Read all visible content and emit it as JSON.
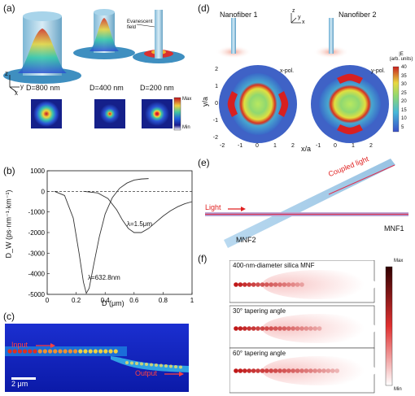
{
  "panel_labels": {
    "a": "(a)",
    "b": "(b)",
    "c": "(c)",
    "d": "(d)",
    "e": "(e)",
    "f": "(f)"
  },
  "panel_a": {
    "diameters": [
      "D=800 nm",
      "D=400 nm",
      "D=200 nm"
    ],
    "evanescent_label": "Evanescent field",
    "colorbar_max": "Max",
    "colorbar_min": "Min",
    "axes": {
      "x": "x",
      "y": "y",
      "z": "z"
    }
  },
  "panel_c": {
    "input_label": "Input",
    "output_label": "Output",
    "scalebar_label": "2 μm"
  },
  "panel_d": {
    "fiber1": "Nanofiber 1",
    "fiber2": "Nanofiber 2",
    "pol_left": "x-pol.",
    "pol_right": "y-pol.",
    "colorbar_title_line1": "|E",
    "colorbar_title_line2": "(arb. units)",
    "colorbar_ticks": [
      "40",
      "35",
      "30",
      "25",
      "20",
      "15",
      "10",
      "5"
    ],
    "ylabel": "y/a",
    "xlabel": "x/a",
    "left_xticks": [
      "-2",
      "-1",
      "0",
      "1",
      "2"
    ],
    "right_xticks": [
      "-1",
      "0",
      "1",
      "2"
    ],
    "yticks": [
      "2",
      "1",
      "0",
      "-1",
      "-2"
    ],
    "axes": {
      "x": "x",
      "y": "y",
      "z": "z"
    }
  },
  "panel_e": {
    "light": "Light",
    "coupled_light": "Coupled light",
    "mnf1": "MNF1",
    "mnf2": "MNF2"
  },
  "panel_f": {
    "rows": [
      "400-nm-diameter silica MNF",
      "30° tapering angle",
      "60° tapering angle"
    ],
    "colorbar_max": "Max",
    "colorbar_min": "Min"
  },
  "chart_data": {
    "type": "line",
    "xlabel": "D (μm)",
    "ylabel": "D_W (ps·nm⁻¹·km⁻¹)",
    "xlim": [
      0,
      1
    ],
    "ylim": [
      -5000,
      1000
    ],
    "xticks": [
      "0",
      "0.2",
      "0.4",
      "0.6",
      "0.8",
      "1"
    ],
    "yticks": [
      "1000",
      "0",
      "-1000",
      "-2000",
      "-3000",
      "-4000",
      "-5000"
    ],
    "grid": false,
    "annotations": [
      "λ=632.8nm",
      "λ=1.5μm"
    ],
    "series": [
      {
        "name": "λ=632.8nm",
        "x": [
          0.05,
          0.12,
          0.18,
          0.22,
          0.25,
          0.27,
          0.29,
          0.32,
          0.36,
          0.4,
          0.45,
          0.5,
          0.55,
          0.6,
          0.65,
          0.7
        ],
        "y": [
          0,
          -200,
          -1300,
          -3000,
          -4400,
          -4950,
          -4700,
          -3600,
          -2200,
          -1100,
          -300,
          150,
          400,
          550,
          600,
          620
        ]
      },
      {
        "name": "λ=1.5μm",
        "x": [
          0.25,
          0.35,
          0.42,
          0.48,
          0.52,
          0.56,
          0.6,
          0.65,
          0.7,
          0.75,
          0.8,
          0.85,
          0.9,
          0.95,
          1.0
        ],
        "y": [
          0,
          -80,
          -350,
          -900,
          -1400,
          -1800,
          -2000,
          -2000,
          -1800,
          -1500,
          -1200,
          -950,
          -750,
          -600,
          -500
        ]
      }
    ]
  }
}
